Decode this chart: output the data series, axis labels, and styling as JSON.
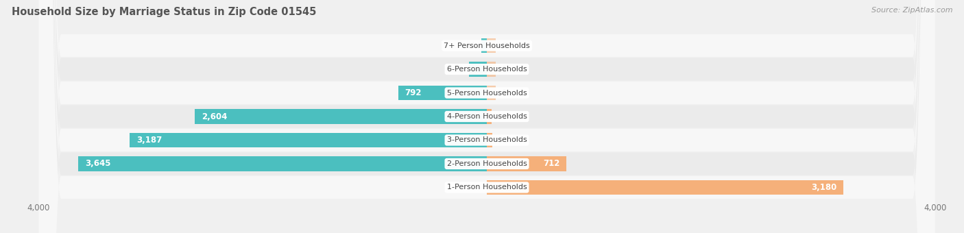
{
  "title": "Household Size by Marriage Status in Zip Code 01545",
  "source": "Source: ZipAtlas.com",
  "categories": [
    "7+ Person Households",
    "6-Person Households",
    "5-Person Households",
    "4-Person Households",
    "3-Person Households",
    "2-Person Households",
    "1-Person Households"
  ],
  "family": [
    51,
    162,
    792,
    2604,
    3187,
    3645,
    0
  ],
  "nonfamily": [
    0,
    0,
    0,
    40,
    51,
    712,
    3180
  ],
  "family_color": "#4bbfbf",
  "nonfamily_color": "#f5b07a",
  "xlim": 4000,
  "bar_height": 0.62,
  "title_fontsize": 10.5,
  "source_fontsize": 8,
  "label_fontsize": 8.5,
  "value_inside_threshold": 500,
  "tick_fontsize": 8.5
}
